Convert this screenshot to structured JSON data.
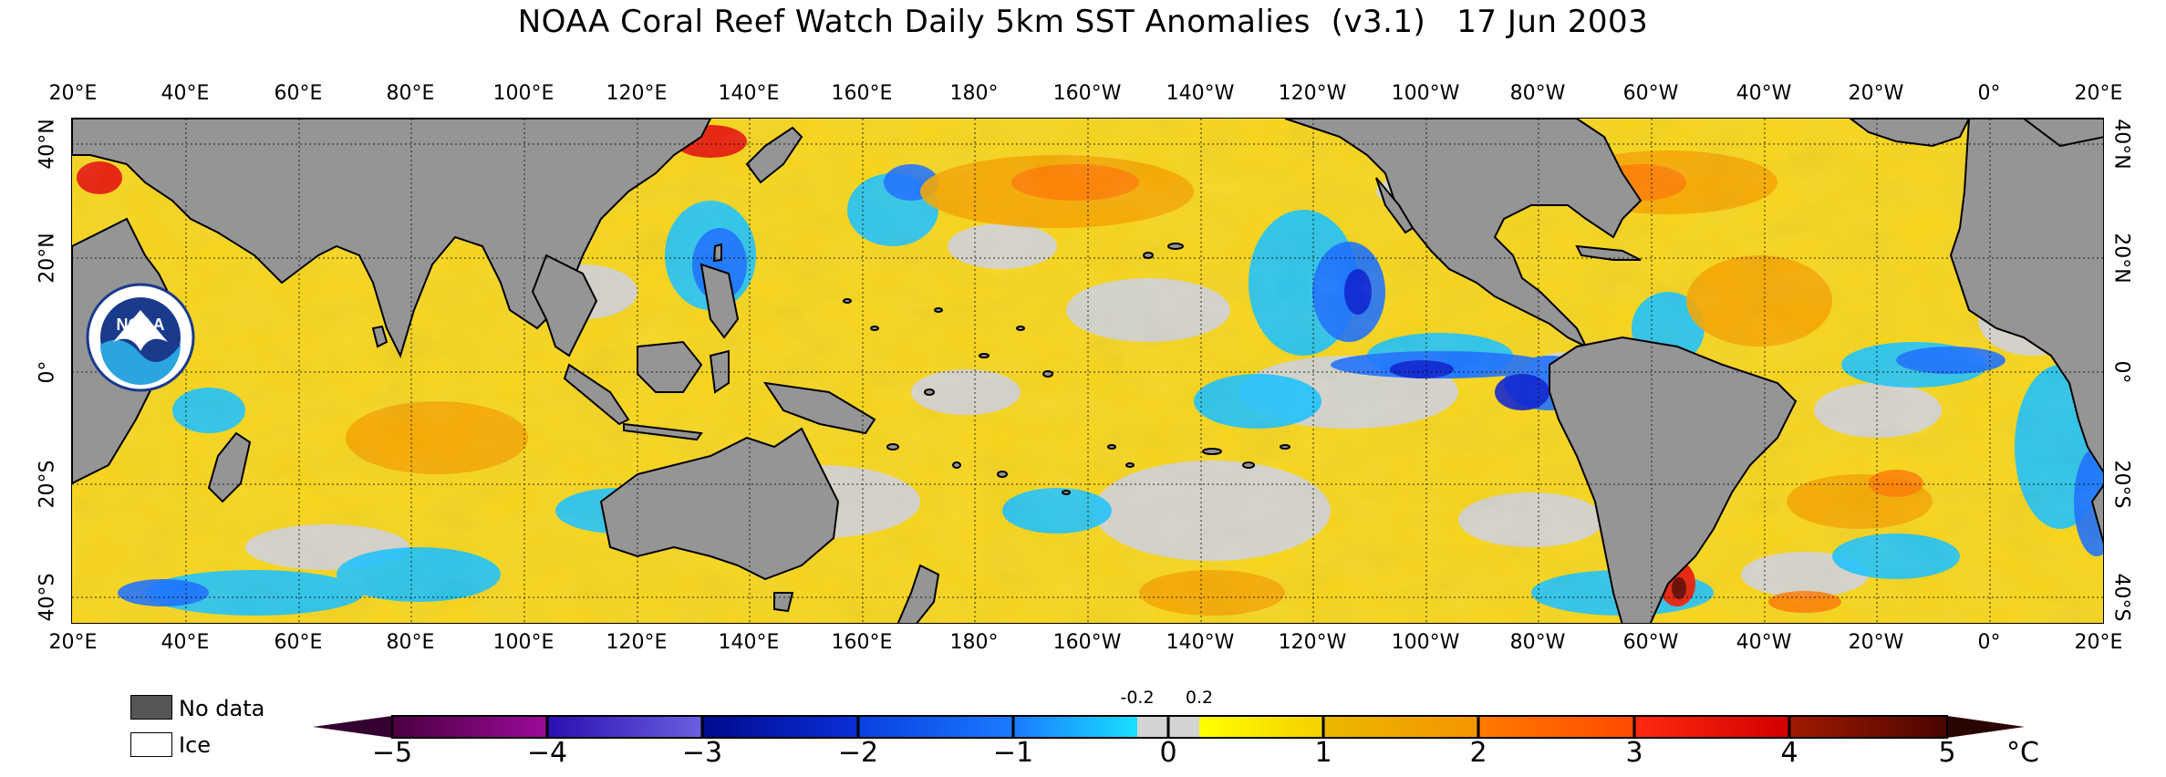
{
  "title": "NOAA Coral Reef Watch Daily 5km SST Anomalies  (v3.1)   17 Jun 2003",
  "longitude_labels": [
    "20°E",
    "40°E",
    "60°E",
    "80°E",
    "100°E",
    "120°E",
    "140°E",
    "160°E",
    "180°",
    "160°W",
    "140°W",
    "120°W",
    "100°W",
    "80°W",
    "60°W",
    "40°W",
    "20°W",
    "0°",
    "20°E"
  ],
  "latitude_labels": [
    "40°N",
    "20°N",
    "0°",
    "20°S",
    "40°S"
  ],
  "logo_text": "NOAA",
  "legend": {
    "no_data_label": "No data",
    "ice_label": "Ice",
    "no_data_color": "#555555",
    "ice_color": "#ffffff"
  },
  "colorbar": {
    "ticks": [
      "−5",
      "−4",
      "−3",
      "−2",
      "−1",
      "0",
      "1",
      "2",
      "3",
      "4",
      "5"
    ],
    "small_ticks": [
      "-0.2",
      "0.2"
    ],
    "unit": "°C",
    "range": [
      -5,
      5
    ]
  },
  "colors": {
    "land": "#959595",
    "near_zero": "#d3d3d3",
    "positive_1": "#ffe600",
    "positive_2": "#f5b700",
    "positive_3": "#ff7a00",
    "positive_4": "#e8220c",
    "positive_5": "#6b0a00",
    "negative_1": "#19c3ff",
    "negative_2": "#1a6fff",
    "negative_3": "#0a1fd0",
    "noaa_blue": "#1a3a8c"
  }
}
